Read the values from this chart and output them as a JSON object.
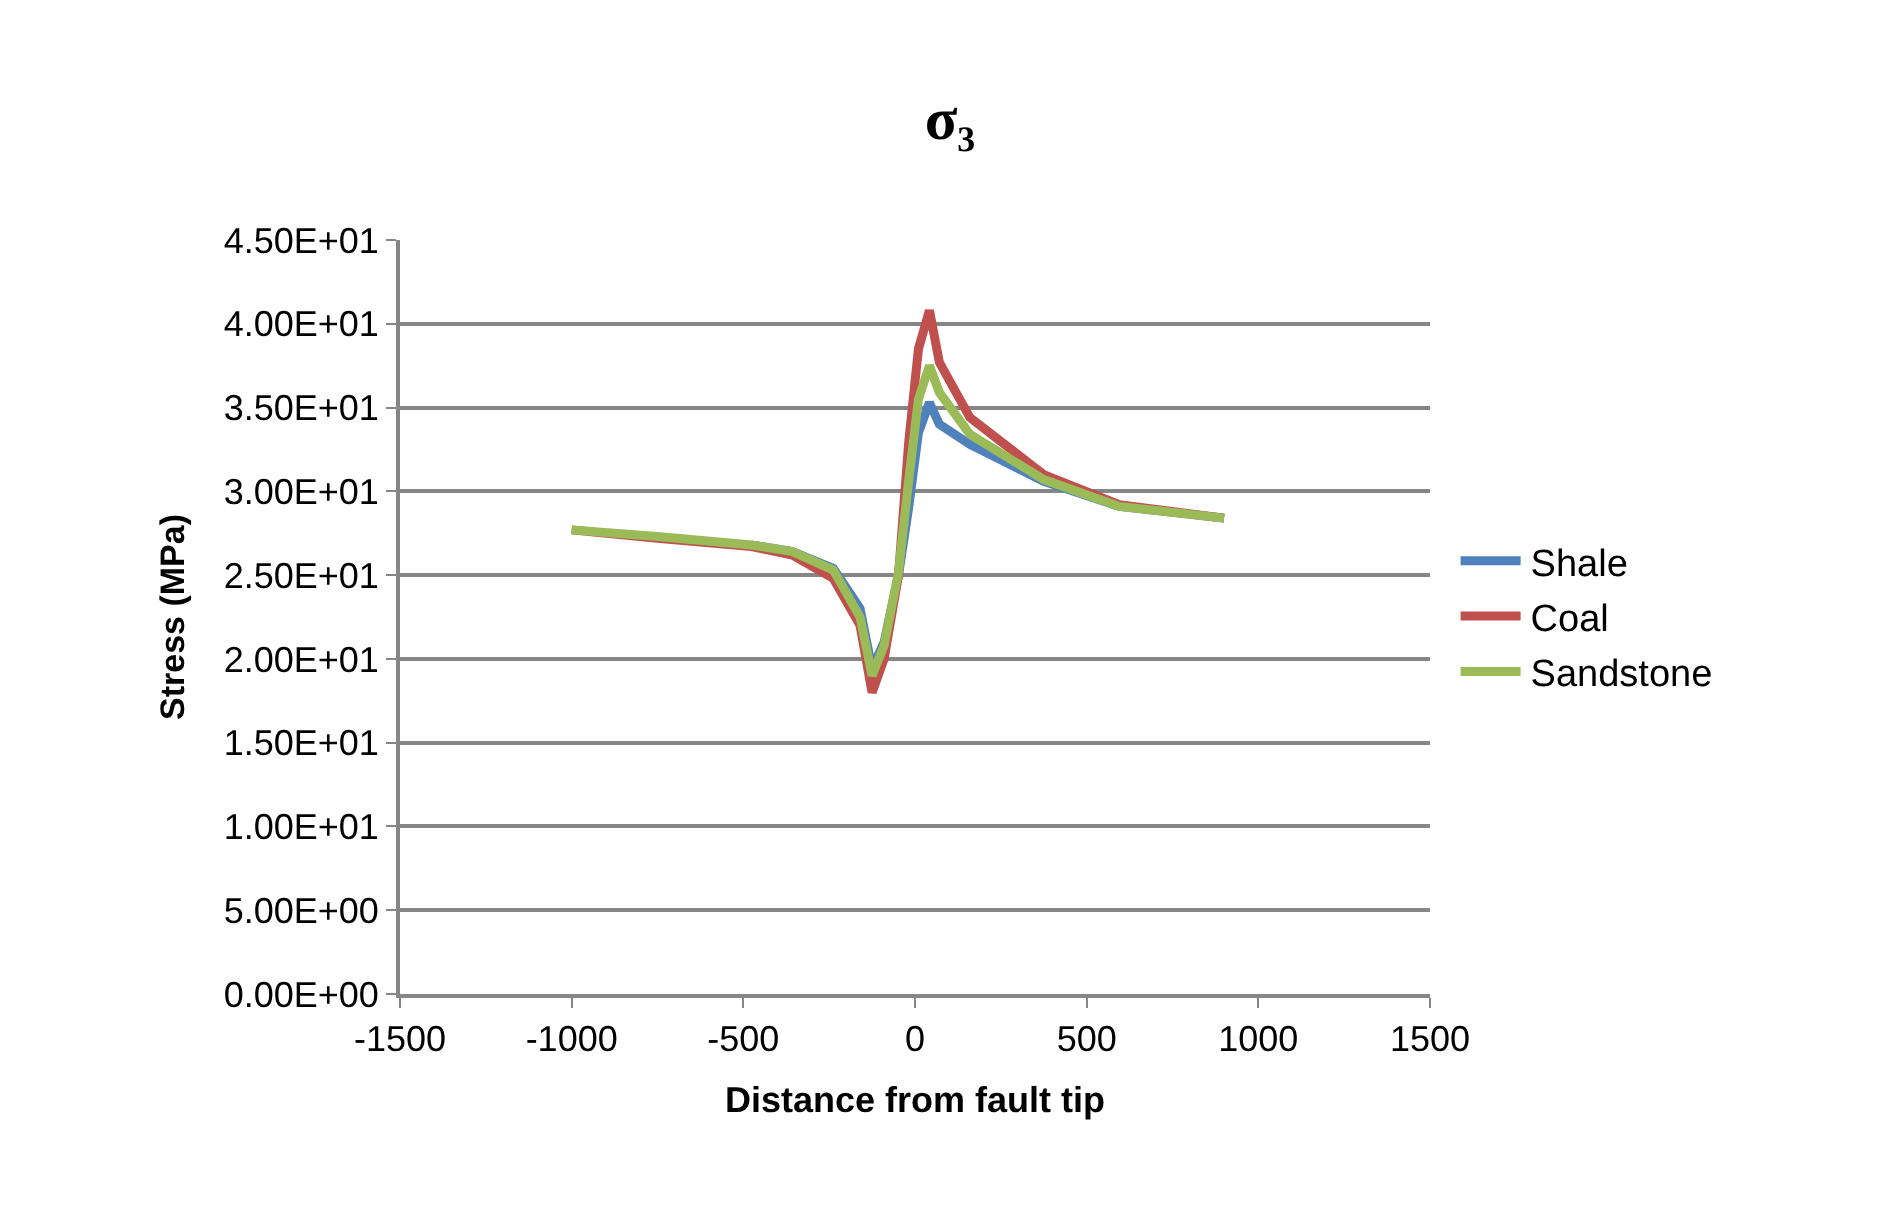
{
  "chart_data": {
    "type": "line",
    "title": "σ₃",
    "xlabel": "Distance from fault tip",
    "ylabel": "Stress (MPa)",
    "x": [
      -1000,
      -750,
      -476,
      -357,
      -238,
      -160,
      -125,
      -90,
      -48,
      -18,
      10,
      42,
      71,
      160,
      375,
      595,
      900
    ],
    "series": [
      {
        "name": "Shale",
        "color": "#4f81bd",
        "values": [
          null,
          null,
          26.8,
          26.4,
          25.4,
          23.0,
          19.4,
          21.0,
          25.0,
          29.1,
          33.5,
          35.3,
          34.0,
          32.8,
          30.6,
          29.1,
          28.4
        ]
      },
      {
        "name": "Coal",
        "color": "#c0504d",
        "values": [
          27.7,
          27.2,
          26.7,
          26.2,
          24.8,
          22.0,
          18.0,
          20.0,
          25.0,
          33.0,
          38.5,
          40.8,
          37.7,
          34.4,
          31.0,
          29.2,
          28.4
        ]
      },
      {
        "name": "Sandstone",
        "color": "#9bbb59",
        "values": [
          27.7,
          27.3,
          26.8,
          26.4,
          25.3,
          22.5,
          19.0,
          20.8,
          25.2,
          30.7,
          35.5,
          37.5,
          35.9,
          33.4,
          30.7,
          29.1,
          28.4
        ]
      }
    ],
    "xlim": [
      -1500,
      1500
    ],
    "xticks": [
      -1500,
      -1000,
      -500,
      0,
      500,
      1000,
      1500
    ],
    "ylim": [
      0,
      45
    ],
    "yticks": [
      {
        "value": 0,
        "label": "0.00E+00"
      },
      {
        "value": 5,
        "label": "5.00E+00"
      },
      {
        "value": 10,
        "label": "1.00E+01"
      },
      {
        "value": 15,
        "label": "1.50E+01"
      },
      {
        "value": 20,
        "label": "2.00E+01"
      },
      {
        "value": 25,
        "label": "2.50E+01"
      },
      {
        "value": 30,
        "label": "3.00E+01"
      },
      {
        "value": 35,
        "label": "3.50E+01"
      },
      {
        "value": 40,
        "label": "4.00E+01"
      },
      {
        "value": 45,
        "label": "4.50E+01"
      }
    ],
    "grid": "y",
    "legend": "right",
    "marker": "none",
    "line_style": "solid"
  }
}
